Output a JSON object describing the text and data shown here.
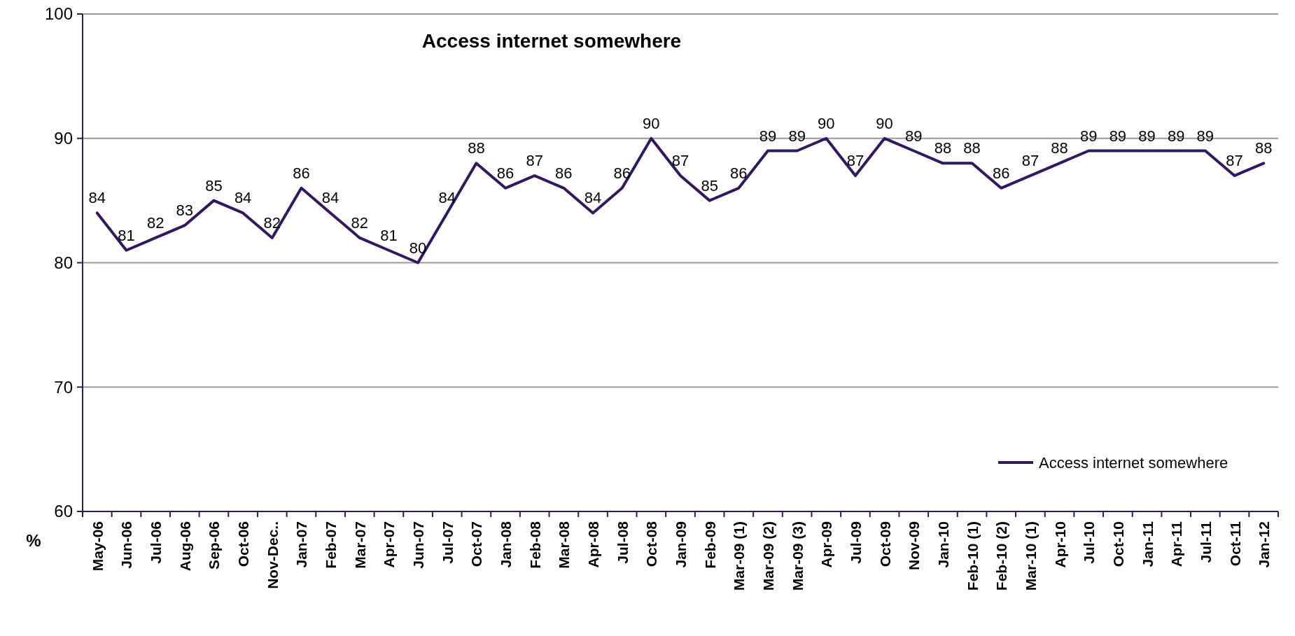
{
  "chart_data": {
    "type": "line",
    "title": "Access internet somewhere",
    "ylabel": "%",
    "categories": [
      "May-06",
      "Jun-06",
      "Jul-06",
      "Aug-06",
      "Sep-06",
      "Oct-06",
      "Nov-Dec..",
      "Jan-07",
      "Feb-07",
      "Mar-07",
      "Apr-07",
      "Jun-07",
      "Jul-07",
      "Oct-07",
      "Jan-08",
      "Feb-08",
      "Mar-08",
      "Apr-08",
      "Jul-08",
      "Oct-08",
      "Jan-09",
      "Feb-09",
      "Mar-09 (1)",
      "Mar-09 (2)",
      "Mar-09 (3)",
      "Apr-09",
      "Jul-09",
      "Oct-09",
      "Nov-09",
      "Jan-10",
      "Feb-10 (1)",
      "Feb-10 (2)",
      "Mar-10 (1)",
      "Apr-10",
      "Jul-10",
      "Oct-10",
      "Jan-11",
      "Apr-11",
      "Jul-11",
      "Oct-11",
      "Jan-12"
    ],
    "series": [
      {
        "name": "Access internet somewhere",
        "color": "#2e1a63",
        "values": [
          84,
          81,
          82,
          83,
          85,
          84,
          82,
          86,
          84,
          82,
          81,
          80,
          84,
          88,
          86,
          87,
          86,
          84,
          86,
          90,
          87,
          85,
          86,
          89,
          89,
          90,
          87,
          90,
          89,
          88,
          88,
          86,
          87,
          88,
          89,
          89,
          89,
          89,
          89,
          87,
          88
        ]
      }
    ],
    "ylim": [
      60,
      100
    ],
    "yticks": [
      60,
      70,
      80,
      90,
      100
    ],
    "grid": "y",
    "legend": "bottom right",
    "data_labels": true,
    "marker": "none",
    "line_style": "solid"
  }
}
